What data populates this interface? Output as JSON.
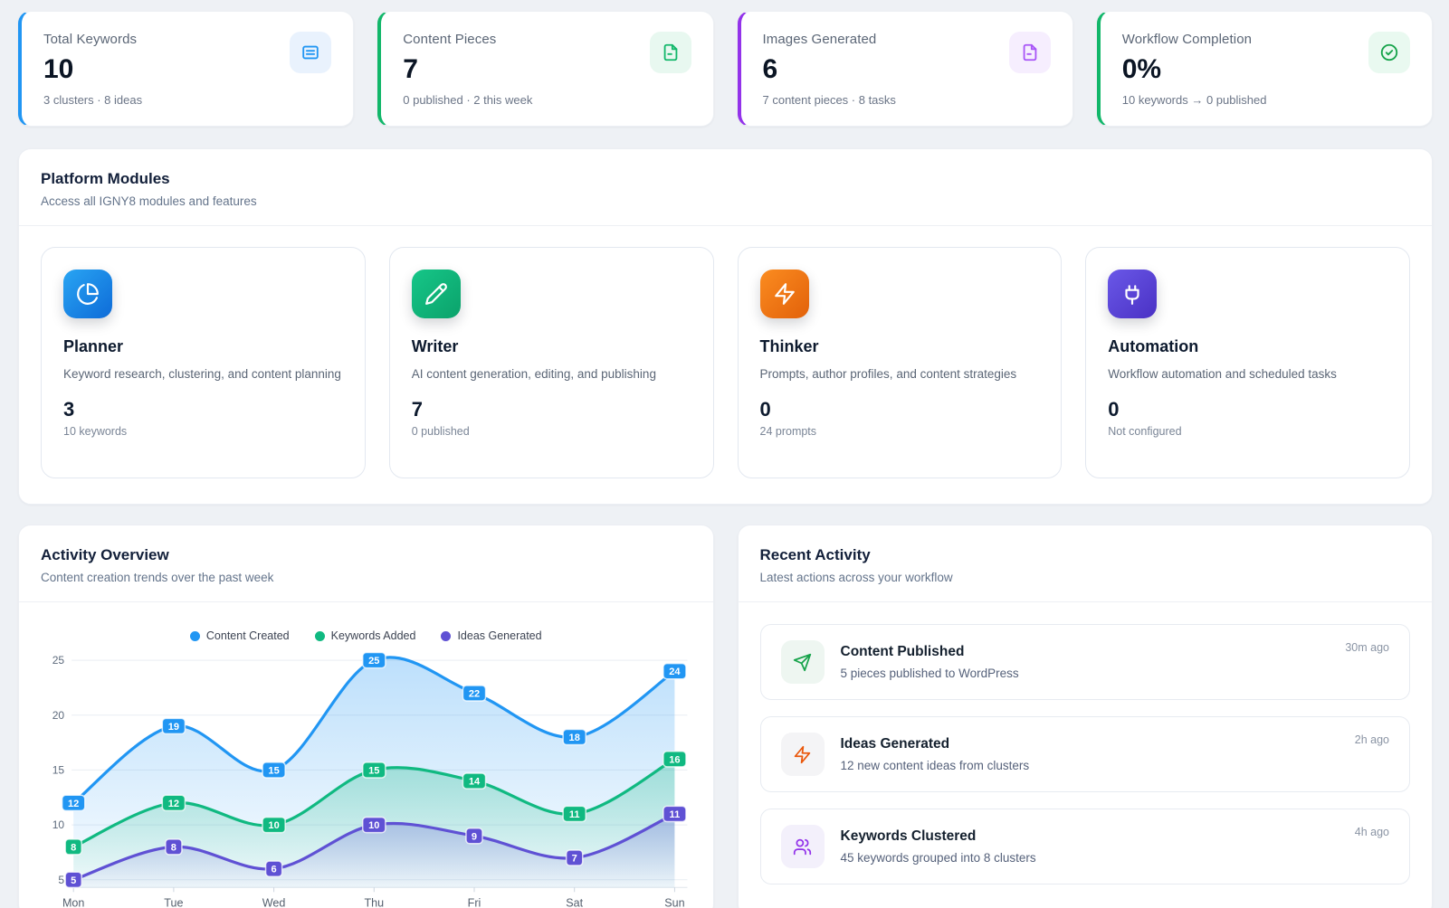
{
  "stats": [
    {
      "label": "Total Keywords",
      "value": "10",
      "caption": "3 clusters · 8 ideas",
      "accent": "#2196f3",
      "icon": "note-icon",
      "icon_bg": "#e9f2fd",
      "icon_color": "#2196f3"
    },
    {
      "label": "Content Pieces",
      "value": "7",
      "caption": "0 published · 2 this week",
      "accent": "#12b76a",
      "icon": "file-icon",
      "icon_bg": "#e8f8f0",
      "icon_color": "#12b76a"
    },
    {
      "label": "Images Generated",
      "value": "6",
      "caption": "7 content pieces · 8 tasks",
      "accent": "#9333ea",
      "icon": "file-icon",
      "icon_bg": "#f6eefe",
      "icon_color": "#a855f7"
    },
    {
      "label": "Workflow Completion",
      "value": "0%",
      "caption": "10 keywords → 0 published",
      "accent": "#12b76a",
      "icon": "check-circle-icon",
      "icon_bg": "#e9f9f0",
      "icon_color": "#16a34a"
    }
  ],
  "modules_panel": {
    "title": "Platform Modules",
    "subtitle": "Access all IGNY8 modules and features",
    "modules": [
      {
        "name": "Planner",
        "description": "Keyword research, clustering, and content planning",
        "value": "3",
        "caption": "10 keywords",
        "icon": "pie-chart-icon",
        "gradient": [
          "#29a5f3",
          "#0e6bd8"
        ]
      },
      {
        "name": "Writer",
        "description": "AI content generation, editing, and publishing",
        "value": "7",
        "caption": "0 published",
        "icon": "pencil-icon",
        "gradient": [
          "#16c688",
          "#0ba26b"
        ]
      },
      {
        "name": "Thinker",
        "description": "Prompts, author profiles, and content strategies",
        "value": "0",
        "caption": "24 prompts",
        "icon": "zap-icon",
        "gradient": [
          "#fb8c20",
          "#e2610a"
        ]
      },
      {
        "name": "Automation",
        "description": "Workflow automation and scheduled tasks",
        "value": "0",
        "caption": "Not configured",
        "icon": "plug-icon",
        "gradient": [
          "#6a58e8",
          "#4a31c4"
        ]
      }
    ]
  },
  "activity_overview": {
    "title": "Activity Overview",
    "subtitle": "Content creation trends over the past week"
  },
  "chart_data": {
    "type": "line",
    "x": [
      "Mon",
      "Tue",
      "Wed",
      "Thu",
      "Fri",
      "Sat",
      "Sun"
    ],
    "series": [
      {
        "name": "Content Created",
        "color": "#2196f3",
        "values": [
          12,
          19,
          15,
          25,
          22,
          18,
          24
        ]
      },
      {
        "name": "Keywords Added",
        "color": "#10b981",
        "values": [
          8,
          12,
          10,
          15,
          14,
          11,
          16
        ]
      },
      {
        "name": "Ideas Generated",
        "color": "#5f51d4",
        "values": [
          5,
          8,
          6,
          10,
          9,
          7,
          11
        ]
      }
    ],
    "y_ticks": [
      5,
      10,
      15,
      20,
      25
    ],
    "ylim": [
      4.3,
      25
    ],
    "legend_position": "top",
    "grid": "horizontal",
    "point_labels": true,
    "area_fill": true,
    "curve": "smooth"
  },
  "recent_activity": {
    "title": "Recent Activity",
    "subtitle": "Latest actions across your workflow",
    "items": [
      {
        "title": "Content Published",
        "description": "5 pieces published to WordPress",
        "time": "30m ago",
        "icon": "send-icon",
        "icon_color": "#16a34a",
        "icon_bg": "#eef6f1"
      },
      {
        "title": "Ideas Generated",
        "description": "12 new content ideas from clusters",
        "time": "2h ago",
        "icon": "zap-icon",
        "icon_color": "#ea580c",
        "icon_bg": "#f4f4f6"
      },
      {
        "title": "Keywords Clustered",
        "description": "45 keywords grouped into 8 clusters",
        "time": "4h ago",
        "icon": "users-icon",
        "icon_color": "#9333ea",
        "icon_bg": "#f3f0fb"
      }
    ]
  }
}
